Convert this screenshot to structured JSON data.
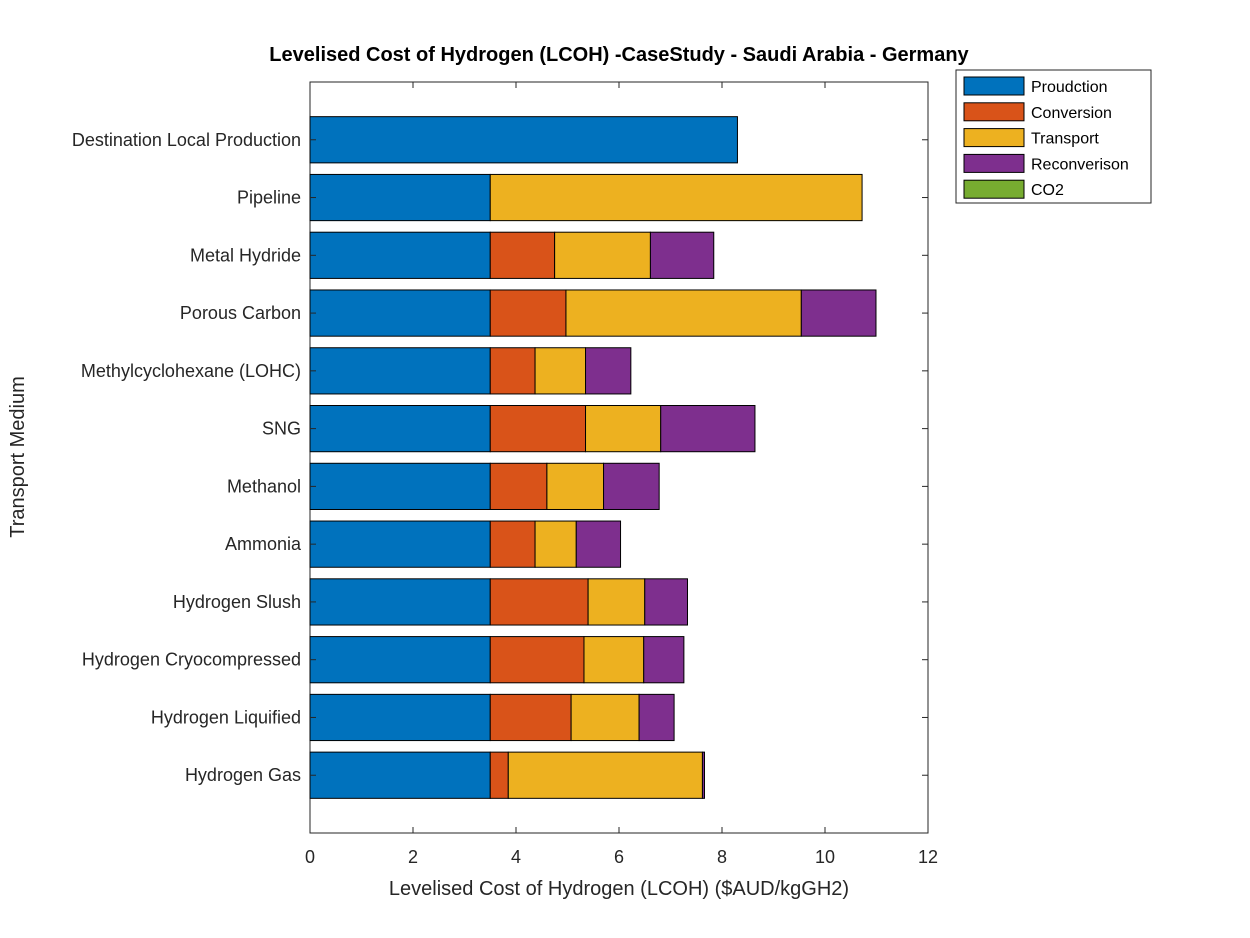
{
  "chart_data": {
    "type": "bar",
    "orientation": "horizontal",
    "stacked": true,
    "title": "Levelised Cost of Hydrogen (LCOH) -CaseStudy - Saudi Arabia - Germany",
    "xlabel": "Levelised Cost of Hydrogen (LCOH) ($AUD/kgGH2)",
    "ylabel": "Transport Medium",
    "xlim": [
      0,
      12
    ],
    "xticks": [
      "0",
      "2",
      "4",
      "6",
      "8",
      "10",
      "12"
    ],
    "grid": false,
    "legend_position": "top-right-outside",
    "categories": [
      "Destination Local Production",
      "Pipeline",
      "Metal Hydride",
      "Porous Carbon",
      "Methylcyclohexane (LOHC)",
      "SNG",
      "Methanol",
      "Ammonia",
      "Hydrogen Slush",
      "Hydrogen Cryocompressed",
      "Hydrogen Liquified",
      "Hydrogen Gas"
    ],
    "series": [
      {
        "name": "Proudction",
        "color": "#0072BD",
        "values": [
          8.3,
          3.5,
          3.5,
          3.5,
          3.5,
          3.5,
          3.5,
          3.5,
          3.5,
          3.5,
          3.5,
          3.5
        ]
      },
      {
        "name": "Conversion",
        "color": "#D95319",
        "values": [
          0,
          0,
          1.25,
          1.47,
          0.87,
          1.85,
          1.1,
          0.87,
          1.9,
          1.82,
          1.57,
          0.35
        ]
      },
      {
        "name": "Transport",
        "color": "#EDB120",
        "values": [
          0,
          7.22,
          1.86,
          4.57,
          0.98,
          1.46,
          1.1,
          0.8,
          1.1,
          1.16,
          1.32,
          3.77
        ]
      },
      {
        "name": "Reconverison",
        "color": "#7E2F8E",
        "values": [
          0,
          0,
          1.23,
          1.45,
          0.88,
          1.83,
          1.08,
          0.86,
          0.83,
          0.78,
          0.68,
          0.04
        ]
      },
      {
        "name": "CO2",
        "color": "#77AC30",
        "values": [
          0,
          0,
          0,
          0,
          0,
          0,
          0,
          0,
          0,
          0,
          0,
          0
        ]
      }
    ]
  }
}
